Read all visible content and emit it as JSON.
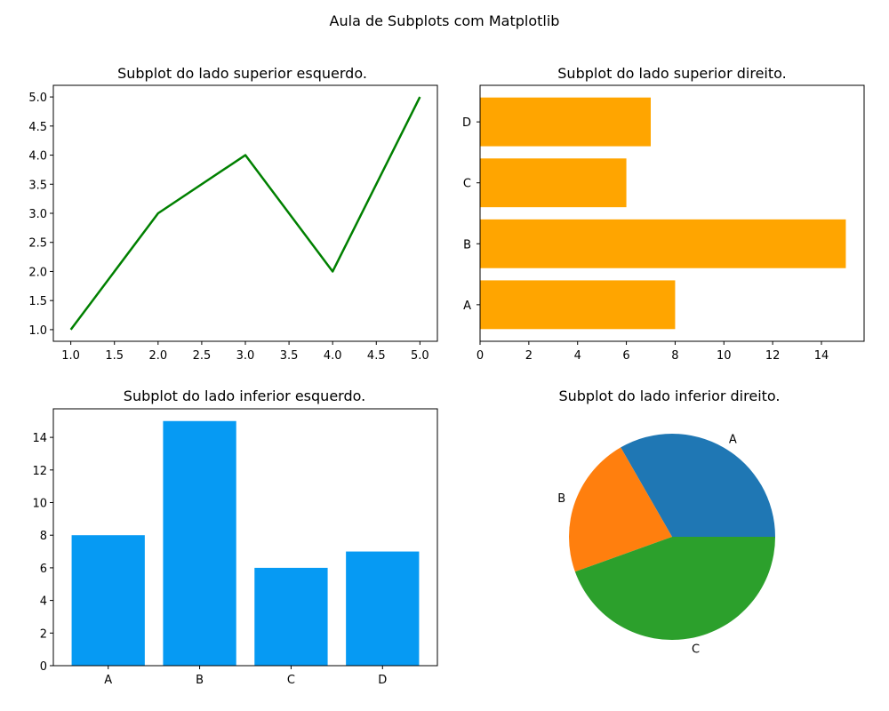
{
  "figure": {
    "suptitle": "Aula de Subplots com Matplotlib"
  },
  "chart_data": [
    {
      "type": "line",
      "title": "Subplot do lado superior esquerdo.",
      "x": [
        1,
        2,
        3,
        4,
        5
      ],
      "y": [
        1,
        3,
        4,
        2,
        5
      ],
      "color": "#008000",
      "xlim": [
        0.8,
        5.2
      ],
      "ylim": [
        0.8,
        5.2
      ],
      "xticks": [
        1.0,
        1.5,
        2.0,
        2.5,
        3.0,
        3.5,
        4.0,
        4.5,
        5.0
      ],
      "xtick_labels": [
        "1.0",
        "1.5",
        "2.0",
        "2.5",
        "3.0",
        "3.5",
        "4.0",
        "4.5",
        "5.0"
      ],
      "yticks": [
        1.0,
        1.5,
        2.0,
        2.5,
        3.0,
        3.5,
        4.0,
        4.5,
        5.0
      ],
      "ytick_labels": [
        "1.0",
        "1.5",
        "2.0",
        "2.5",
        "3.0",
        "3.5",
        "4.0",
        "4.5",
        "5.0"
      ],
      "xlabel": "",
      "ylabel": ""
    },
    {
      "type": "bar",
      "orientation": "horizontal",
      "title": "Subplot do lado superior direito.",
      "categories": [
        "A",
        "B",
        "C",
        "D"
      ],
      "values": [
        8,
        15,
        6,
        7
      ],
      "color": "#FFA500",
      "xlim": [
        0,
        15.75
      ],
      "xticks": [
        0,
        2,
        4,
        6,
        8,
        10,
        12,
        14
      ],
      "xtick_labels": [
        "0",
        "2",
        "4",
        "6",
        "8",
        "10",
        "12",
        "14"
      ],
      "xlabel": "",
      "ylabel": ""
    },
    {
      "type": "bar",
      "orientation": "vertical",
      "title": "Subplot do lado inferior esquerdo.",
      "categories": [
        "A",
        "B",
        "C",
        "D"
      ],
      "values": [
        8,
        15,
        6,
        7
      ],
      "color": "#069AF3",
      "ylim": [
        0,
        15.75
      ],
      "yticks": [
        0,
        2,
        4,
        6,
        8,
        10,
        12,
        14
      ],
      "ytick_labels": [
        "0",
        "2",
        "4",
        "6",
        "8",
        "10",
        "12",
        "14"
      ],
      "xlabel": "",
      "ylabel": ""
    },
    {
      "type": "pie",
      "title": "Subplot do lado inferior direito.",
      "labels": [
        "A",
        "B",
        "C"
      ],
      "values": [
        33.3,
        22.2,
        44.5
      ],
      "colors": [
        "#1F77B4",
        "#FF7F0E",
        "#2CA02C"
      ]
    }
  ]
}
